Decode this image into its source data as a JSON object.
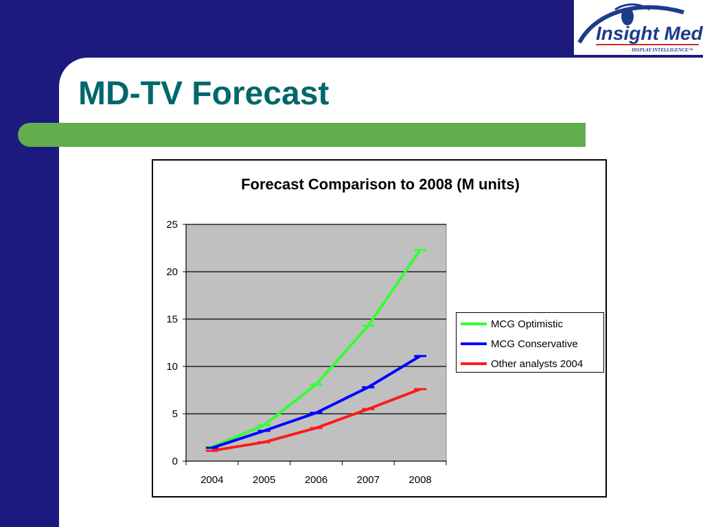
{
  "slide": {
    "title": "MD-TV Forecast"
  },
  "logo": {
    "name": "Insight Media",
    "tagline": "DISPLAY INTELLIGENCE™"
  },
  "chart_data": {
    "type": "line",
    "title": "Forecast Comparison to 2008 (M units)",
    "xlabel": "",
    "ylabel": "",
    "categories": [
      "2004",
      "2005",
      "2006",
      "2007",
      "2008"
    ],
    "ylim": [
      0,
      25
    ],
    "yticks": [
      0,
      5,
      10,
      15,
      20,
      25
    ],
    "grid": true,
    "plot_background": "#c0c0c0",
    "legend_position": "right",
    "series": [
      {
        "name": "MCG Optimistic",
        "color": "#33ff33",
        "values": [
          1.5,
          3.8,
          8.1,
          14.3,
          22.3
        ]
      },
      {
        "name": "MCG Conservative",
        "color": "#0000ff",
        "values": [
          1.4,
          3.2,
          5.1,
          7.8,
          11.1
        ]
      },
      {
        "name": "Other analysts 2004",
        "color": "#ff1a1a",
        "values": [
          1.1,
          2.0,
          3.5,
          5.5,
          7.6
        ]
      }
    ]
  },
  "colors": {
    "background": "#1c1a7e",
    "title": "#00676b",
    "accent_bar": "#62ad4e"
  }
}
